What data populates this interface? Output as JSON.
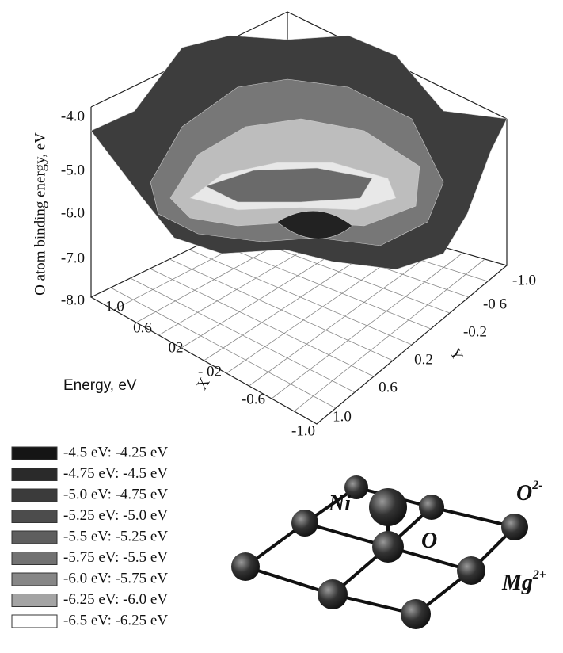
{
  "plot": {
    "z_label": "O atom binding energy, eV",
    "z_ticks": [
      "-4.0",
      "-5.0",
      "-6.0",
      "-7.0",
      "-8.0"
    ],
    "x_label": "X",
    "x_ticks": [
      "1.0",
      "0.6",
      "02",
      "- 02",
      "-0.6",
      "-1.0"
    ],
    "y_label": "Y",
    "y_ticks": [
      "-1.0",
      "-0 6",
      "-0.2",
      "0.2",
      "0.6",
      "1.0"
    ]
  },
  "legend": {
    "title": "Energy, eV",
    "items": [
      {
        "label": "-4.5 eV: -4.25 eV",
        "color": "#151515"
      },
      {
        "label": "-4.75 eV: -4.5 eV",
        "color": "#2a2a2a"
      },
      {
        "label": "-5.0 eV: -4.75 eV",
        "color": "#3b3b3b"
      },
      {
        "label": "-5.25 eV: -5.0 eV",
        "color": "#4c4c4c"
      },
      {
        "label": "-5.5 eV: -5.25 eV",
        "color": "#5e5e5e"
      },
      {
        "label": "-5.75 eV: -5.5 eV",
        "color": "#727272"
      },
      {
        "label": "-6.0 eV: -5.75 eV",
        "color": "#878787"
      },
      {
        "label": "-6.25 eV: -6.0 eV",
        "color": "#a4a4a4"
      },
      {
        "label": "-6.5 eV: -6.25 eV",
        "color": "#ffffff"
      }
    ]
  },
  "molecule": {
    "labels": [
      {
        "text": "Ni",
        "sup": null
      },
      {
        "text": "O",
        "sup": null
      },
      {
        "text": "O",
        "sup": "2-"
      },
      {
        "text": "Mg",
        "sup": "2+"
      }
    ]
  }
}
